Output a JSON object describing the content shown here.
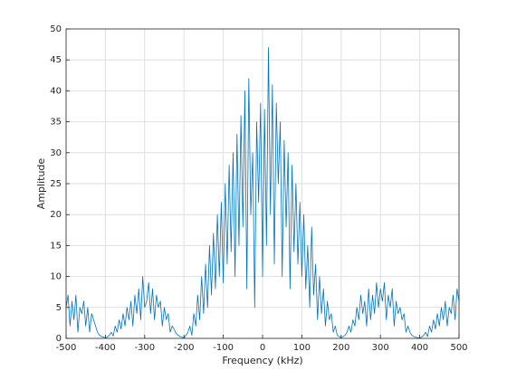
{
  "chart_data": {
    "type": "line",
    "x_label": "Frequency (kHz)",
    "y_label": "Amplitude",
    "x": [
      -500,
      -495,
      -490,
      -485,
      -480,
      -475,
      -470,
      -465,
      -460,
      -455,
      -450,
      -445,
      -440,
      -435,
      -430,
      -425,
      -420,
      -415,
      -410,
      -405,
      -400,
      -395,
      -390,
      -385,
      -380,
      -375,
      -370,
      -365,
      -360,
      -355,
      -350,
      -345,
      -340,
      -335,
      -330,
      -325,
      -320,
      -315,
      -310,
      -305,
      -300,
      -295,
      -290,
      -285,
      -280,
      -275,
      -270,
      -265,
      -260,
      -255,
      -250,
      -245,
      -240,
      -235,
      -230,
      -225,
      -220,
      -215,
      -210,
      -205,
      -200,
      -195,
      -190,
      -185,
      -180,
      -175,
      -170,
      -165,
      -160,
      -155,
      -150,
      -145,
      -140,
      -135,
      -130,
      -125,
      -120,
      -115,
      -110,
      -105,
      -100,
      -95,
      -90,
      -85,
      -80,
      -75,
      -70,
      -65,
      -60,
      -55,
      -50,
      -45,
      -40,
      -35,
      -30,
      -25,
      -20,
      -15,
      -10,
      -5,
      0,
      5,
      10,
      15,
      20,
      25,
      30,
      35,
      40,
      45,
      50,
      55,
      60,
      65,
      70,
      75,
      80,
      85,
      90,
      95,
      100,
      105,
      110,
      115,
      120,
      125,
      130,
      135,
      140,
      145,
      150,
      155,
      160,
      165,
      170,
      175,
      180,
      185,
      190,
      195,
      200,
      205,
      210,
      215,
      220,
      225,
      230,
      235,
      240,
      245,
      250,
      255,
      260,
      265,
      270,
      275,
      280,
      285,
      290,
      295,
      300,
      305,
      310,
      315,
      320,
      325,
      330,
      335,
      340,
      345,
      350,
      355,
      360,
      365,
      370,
      375,
      380,
      385,
      390,
      395,
      400,
      405,
      410,
      415,
      420,
      425,
      430,
      435,
      440,
      445,
      450,
      455,
      460,
      465,
      470,
      475,
      480,
      485,
      490,
      495,
      500
    ],
    "series": [
      {
        "color": "#0072bd",
        "values": [
          5,
          7,
          2,
          6,
          3,
          7,
          1,
          5,
          4,
          6,
          2,
          5,
          1,
          4,
          3,
          2,
          1,
          0.5,
          0.3,
          0.2,
          0.1,
          0.2,
          0.5,
          1,
          0.4,
          2,
          1,
          3,
          1.5,
          4,
          2,
          5,
          3,
          6,
          2,
          7,
          4,
          8,
          3,
          10,
          5,
          6,
          9,
          4,
          8,
          3,
          7,
          5,
          6,
          2,
          5,
          3,
          4,
          1,
          2,
          1.5,
          0.8,
          0.5,
          0.3,
          0.2,
          0.1,
          0.5,
          1,
          2,
          0.5,
          4,
          2,
          7,
          3,
          10,
          4,
          12,
          5,
          15,
          7,
          17,
          8,
          20,
          10,
          22,
          9,
          25,
          12,
          28,
          14,
          30,
          10,
          33,
          15,
          36,
          18,
          40,
          8,
          42,
          20,
          30,
          5,
          35,
          22,
          38,
          10,
          37,
          15,
          47,
          20,
          41,
          12,
          38,
          25,
          35,
          10,
          32,
          18,
          30,
          8,
          28,
          14,
          25,
          12,
          22,
          10,
          20,
          8,
          15,
          5,
          18,
          7,
          12,
          3,
          10,
          4,
          8,
          2,
          6,
          3,
          4,
          1,
          2,
          0.5,
          0.3,
          0.1,
          0.3,
          0.5,
          1,
          2,
          1,
          3,
          2,
          5,
          3,
          7,
          4,
          6,
          2,
          8,
          3,
          7,
          4,
          9,
          5,
          8,
          6,
          9,
          3,
          7,
          5,
          8,
          2,
          6,
          4,
          5,
          3,
          4,
          1,
          2,
          1,
          0.5,
          0.3,
          0.2,
          0.1,
          0.05,
          0.2,
          0.5,
          1,
          0.3,
          2,
          1,
          3,
          1.5,
          4,
          2,
          5,
          3,
          6,
          2,
          5,
          4,
          7,
          3,
          8,
          6
        ]
      }
    ],
    "xlim": [
      -500,
      500
    ],
    "xticks": [
      -500,
      -400,
      -300,
      -200,
      -100,
      0,
      100,
      200,
      300,
      400,
      500
    ],
    "ylim": [
      0,
      50
    ],
    "yticks": [
      0,
      5,
      10,
      15,
      20,
      25,
      30,
      35,
      40,
      45,
      50
    ],
    "grid": true
  }
}
